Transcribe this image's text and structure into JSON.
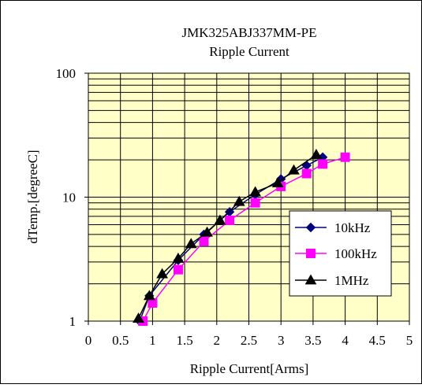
{
  "chart_data": {
    "type": "line",
    "title": "JMK325ABJ337MM-PE",
    "subtitle": "Ripple Current",
    "xlabel": "Ripple Current[Arms]",
    "ylabel": "dTemp.[degreeC]",
    "xlim": [
      0,
      5
    ],
    "ylim": [
      1,
      100
    ],
    "y_scale": "log",
    "x_ticks": [
      "0",
      "0.5",
      "1",
      "1.5",
      "2",
      "2.5",
      "3",
      "3.5",
      "4",
      "4.5",
      "5"
    ],
    "y_ticks": [
      "1",
      "10",
      "100"
    ],
    "grid": true,
    "legend_position": "center-right",
    "plot_background": "#ffffc8",
    "series": [
      {
        "name": "10kHz",
        "color": "#000080",
        "marker": "diamond",
        "x": [
          0.8,
          0.95,
          1.4,
          1.8,
          2.2,
          2.6,
          3.0,
          3.4,
          3.65
        ],
        "y": [
          1.0,
          1.6,
          3.1,
          5.0,
          7.6,
          10.5,
          14.0,
          18.0,
          21.0
        ]
      },
      {
        "name": "100kHz",
        "color": "#ff00ff",
        "marker": "square",
        "x": [
          0.85,
          1.0,
          1.4,
          1.8,
          2.2,
          2.6,
          3.0,
          3.4,
          3.65,
          4.0
        ],
        "y": [
          1.0,
          1.4,
          2.6,
          4.4,
          6.5,
          9.0,
          12.2,
          15.5,
          18.5,
          21.0
        ]
      },
      {
        "name": "1MHz",
        "color": "#000000",
        "marker": "triangle",
        "x": [
          0.78,
          0.95,
          1.15,
          1.4,
          1.6,
          1.85,
          2.05,
          2.35,
          2.6,
          2.95,
          3.2,
          3.55
        ],
        "y": [
          1.05,
          1.6,
          2.4,
          3.2,
          4.2,
          5.2,
          6.5,
          9.2,
          11.0,
          13.0,
          16.5,
          22.0
        ]
      }
    ]
  }
}
